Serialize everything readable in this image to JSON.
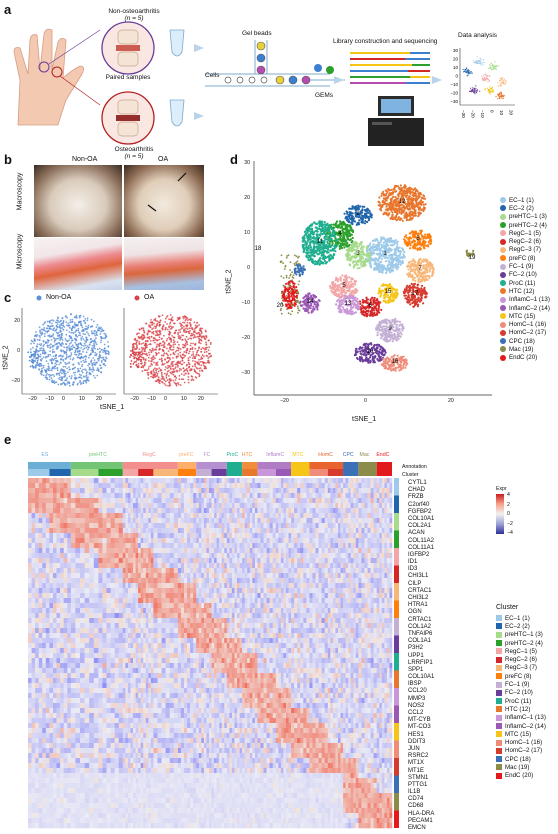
{
  "panels": {
    "a": {
      "letter": "a",
      "non_oa_title": "Non-osteoarthritis",
      "non_oa_n": "(n = 5)",
      "paired": "Paired samples",
      "oa_title": "Osteoarthritis",
      "oa_n": "(n = 5)",
      "gel_beads": "Gel beads",
      "cells": "Cells",
      "gems": "GEMs",
      "library": "Library construction and sequencing",
      "data_analysis": "Data analysis",
      "mini_y_ticks": [
        "30",
        "20",
        "10",
        "0",
        "−10",
        "−20",
        "−30"
      ],
      "mini_x_ticks": [
        "−30",
        "−20",
        "−10",
        "0",
        "10",
        "20"
      ]
    },
    "b": {
      "letter": "b",
      "col1": "Non-OA",
      "col2": "OA",
      "row1": "Macroscopy",
      "row2": "Microscopy"
    },
    "c": {
      "letter": "c",
      "legend1": "Non-OA",
      "legend2": "OA",
      "ylabel": "tSNE_2",
      "xlabel": "tSNE_1",
      "x_ticks": [
        "−20",
        "−10",
        "0",
        "10",
        "20"
      ],
      "y_ticks": [
        "20",
        "0",
        "−20"
      ]
    },
    "d": {
      "letter": "d",
      "ylabel": "tSNE_2",
      "xlabel": "tSNE_1",
      "x_ticks": [
        "−20",
        "0",
        "20"
      ],
      "y_ticks": [
        "30",
        "20",
        "10",
        "0",
        "−10",
        "−20",
        "−30"
      ],
      "cluster_numbers": [
        "1",
        "2",
        "3",
        "4",
        "5",
        "6",
        "7",
        "8",
        "9",
        "10",
        "11",
        "12",
        "13",
        "14",
        "15",
        "16",
        "17",
        "18",
        "19",
        "20"
      ]
    },
    "e": {
      "letter": "e",
      "annotation_label": "Annotation",
      "cluster_label": "Cluster",
      "expr_label": "Expr",
      "expr_ticks": [
        "4",
        "2",
        "0",
        "−2",
        "−4"
      ],
      "legend_title": "Cluster"
    }
  },
  "clusters": [
    {
      "name": "EC–1 (1)",
      "color": "#9ecae9"
    },
    {
      "name": "EC–2 (2)",
      "color": "#2166ac"
    },
    {
      "name": "preHTC–1 (3)",
      "color": "#a6db8b"
    },
    {
      "name": "preHTC–2 (4)",
      "color": "#2ca02c"
    },
    {
      "name": "RegC–1 (5)",
      "color": "#f4a6a6"
    },
    {
      "name": "RegC–2 (6)",
      "color": "#d62728"
    },
    {
      "name": "RegC–3 (7)",
      "color": "#f7b779"
    },
    {
      "name": "preFC (8)",
      "color": "#ff7f0e"
    },
    {
      "name": "FC–1 (9)",
      "color": "#c5b0d5"
    },
    {
      "name": "FC–2 (10)",
      "color": "#6a3d9a"
    },
    {
      "name": "ProC (11)",
      "color": "#1fae8f"
    },
    {
      "name": "HTC (12)",
      "color": "#e8772e"
    },
    {
      "name": "InflamC–1 (13)",
      "color": "#c996d8"
    },
    {
      "name": "InflamC–2 (14)",
      "color": "#9b59b6"
    },
    {
      "name": "MTC (15)",
      "color": "#f5c518"
    },
    {
      "name": "HomC–1 (16)",
      "color": "#f08c7a"
    },
    {
      "name": "HomC–2 (17)",
      "color": "#d73b2e"
    },
    {
      "name": "CPC (18)",
      "color": "#3b6fb6"
    },
    {
      "name": "Mac (19)",
      "color": "#8c8c4a"
    },
    {
      "name": "EndC (20)",
      "color": "#e31a1c"
    }
  ],
  "annotations": [
    {
      "name": "ES",
      "color": "#6baed6"
    },
    {
      "name": "preHTC",
      "color": "#74c476"
    },
    {
      "name": "RegC",
      "color": "#f28e8e"
    },
    {
      "name": "preFC",
      "color": "#fdae6b"
    },
    {
      "name": "FC",
      "color": "#b590d0"
    },
    {
      "name": "ProC",
      "color": "#1fae8f"
    },
    {
      "name": "HTC",
      "color": "#f08c3c"
    },
    {
      "name": "InflamC",
      "color": "#b07cc6"
    },
    {
      "name": "MTC",
      "color": "#f5c518"
    },
    {
      "name": "HomC",
      "color": "#e8632e"
    },
    {
      "name": "CPC",
      "color": "#3b6fb6"
    },
    {
      "name": "Mac",
      "color": "#8c8c4a"
    },
    {
      "name": "EndC",
      "color": "#e31a1c"
    }
  ],
  "genes": [
    "CYTL1",
    "CHAD",
    "FRZB",
    "C2orf40",
    "FGFBP2",
    "COL10A1",
    "COL2A1",
    "ACAN",
    "COL11A2",
    "COL11A1",
    "IGFBP2",
    "ID1",
    "ID3",
    "CHI3L1",
    "CILP",
    "CRTAC1",
    "CHI3L2",
    "HTRA1",
    "OGN",
    "CRTAC1",
    "COL1A2",
    "TNFAIP6",
    "COL1A1",
    "P3H2",
    "UPP1",
    "LRRFIP1",
    "SPP1",
    "COL10A1",
    "IBSP",
    "CCL20",
    "MMP3",
    "NOS2",
    "CCL2",
    "MT-CYB",
    "MT-CO3",
    "HES1",
    "DDIT3",
    "JUN",
    "RSRC2",
    "MT1X",
    "MT1E",
    "STMN1",
    "PTTG1",
    "IL1B",
    "CD74",
    "CD68",
    "HLA-DRA",
    "PECAM1",
    "EMCN"
  ]
}
